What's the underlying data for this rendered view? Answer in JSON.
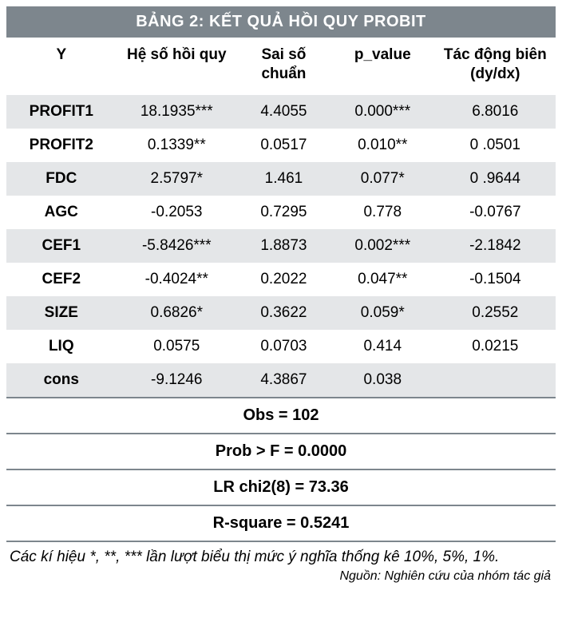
{
  "title": "BẢNG 2: KẾT QUẢ HỒI QUY PROBIT",
  "columns": [
    "Y",
    "Hệ số hồi quy",
    "Sai số chuẩn",
    "p_value",
    "Tác động biên (dy/dx)"
  ],
  "rows": [
    {
      "label": "PROFIT1",
      "coef": "18.1935***",
      "se": "4.4055",
      "p": "0.000***",
      "me": "6.8016",
      "shade": true
    },
    {
      "label": "PROFIT2",
      "coef": "0.1339**",
      "se": "0.0517",
      "p": "0.010**",
      "me": "0 .0501",
      "shade": false
    },
    {
      "label": "FDC",
      "coef": "2.5797*",
      "se": "1.461",
      "p": "0.077*",
      "me": "0 .9644",
      "shade": true
    },
    {
      "label": "AGC",
      "coef": "-0.2053",
      "se": "0.7295",
      "p": "0.778",
      "me": "-0.0767",
      "shade": false
    },
    {
      "label": "CEF1",
      "coef": "-5.8426***",
      "se": "1.8873",
      "p": "0.002***",
      "me": "-2.1842",
      "shade": true
    },
    {
      "label": "CEF2",
      "coef": "-0.4024**",
      "se": "0.2022",
      "p": "0.047**",
      "me": "-0.1504",
      "shade": false
    },
    {
      "label": "SIZE",
      "coef": "0.6826*",
      "se": "0.3622",
      "p": "0.059*",
      "me": "0.2552",
      "shade": true
    },
    {
      "label": "LIQ",
      "coef": "0.0575",
      "se": "0.0703",
      "p": "0.414",
      "me": "0.0215",
      "shade": false
    },
    {
      "label": "cons",
      "coef": "-9.1246",
      "se": "4.3867",
      "p": "0.038",
      "me": "",
      "shade": true
    }
  ],
  "footer_rows": [
    "Obs = 102",
    "Prob > F = 0.0000",
    "LR chi2(8) = 73.36",
    "R-square = 0.5241"
  ],
  "note": "Các kí hiệu *, **, *** lần lượt biểu thị mức ý nghĩa thống kê 10%, 5%, 1%.",
  "source": "Nguồn: Nghiên cứu của nhóm tác giả",
  "style": {
    "title_bg": "#7d868d",
    "title_fg": "#ffffff",
    "shade_bg": "#e4e6e8",
    "plain_bg": "#ffffff",
    "rule_color": "#7d868d",
    "font_size_body": 19,
    "font_size_title": 20,
    "col_widths_pct": [
      20,
      22,
      17,
      19,
      22
    ]
  }
}
